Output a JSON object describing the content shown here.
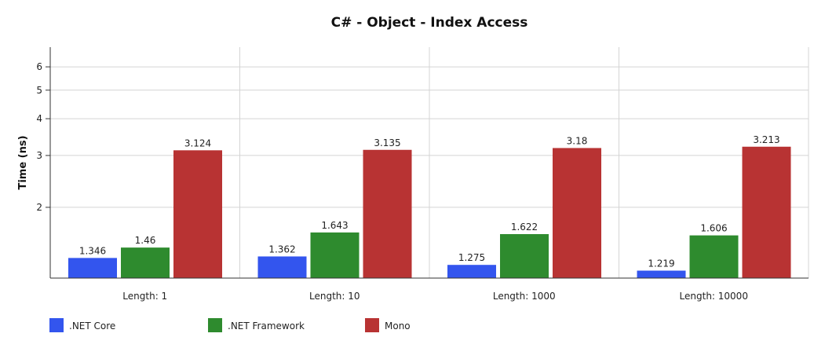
{
  "chart_data": {
    "type": "bar",
    "title": "C# - Object -  Index Access",
    "ylabel": "Time (ns)",
    "xlabel": "",
    "yscale": "log",
    "ylim": [
      1.15,
      7.0
    ],
    "yticks": [
      2,
      3,
      4,
      5,
      6
    ],
    "grid": true,
    "legend_position": "bottom-left",
    "categories": [
      "Length: 1",
      "Length: 10",
      "Length: 1000",
      "Length: 10000"
    ],
    "series": [
      {
        "name": ".NET Core",
        "color": "#3355ee",
        "values": [
          1.346,
          1.362,
          1.275,
          1.219
        ]
      },
      {
        "name": ".NET Framework",
        "color": "#2e8b2e",
        "values": [
          1.46,
          1.643,
          1.622,
          1.606
        ]
      },
      {
        "name": "Mono",
        "color": "#b83333",
        "values": [
          3.124,
          3.135,
          3.18,
          3.213
        ]
      }
    ]
  }
}
